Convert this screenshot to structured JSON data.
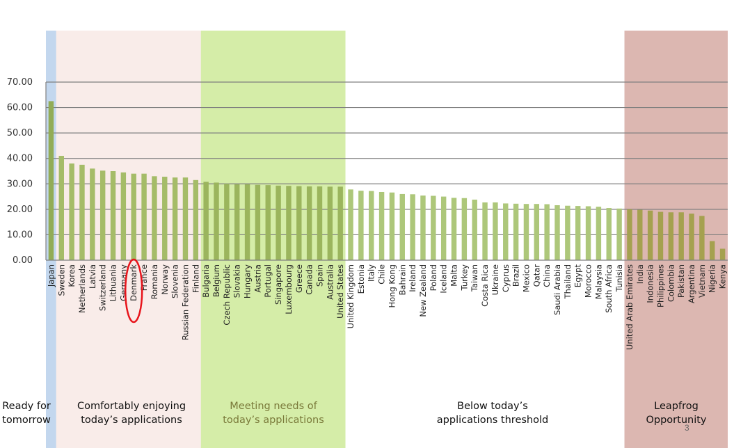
{
  "chart_data": {
    "type": "bar",
    "categories": [
      "Japan",
      "Sweden",
      "Korea",
      "Netherlands",
      "Latvia",
      "Switzerland",
      "Lithuania",
      "Germany",
      "Denmark",
      "France",
      "Romania",
      "Norway",
      "Slovenia",
      "Russian Federation",
      "Finland",
      "Bulgaria",
      "Belgium",
      "Czech Republic",
      "Slovakia",
      "Hungary",
      "Austria",
      "Portugal",
      "Singapore",
      "Luxembourg",
      "Greece",
      "Canada",
      "Spain",
      "Australia",
      "United States",
      "United Kingdom",
      "Estonia",
      "Italy",
      "Chile",
      "Hong Kong",
      "Bahrain",
      "Ireland",
      "New Zealand",
      "Poland",
      "Iceland",
      "Malta",
      "Turkey",
      "Taiwan",
      "Costa Rica",
      "Ukraine",
      "Cyprus",
      "Brazil",
      "Mexico",
      "Qatar",
      "China",
      "Saudi Arabia",
      "Thailand",
      "Egypt",
      "Morocco",
      "Malaysia",
      "South Africa",
      "Tunisia",
      "United Arab Emirates",
      "India",
      "Indonesia",
      "Philippines",
      "Colombia",
      "Pakistan",
      "Argentina",
      "Vietnam",
      "Nigeria",
      "Kenya"
    ],
    "values": [
      62.5,
      41.0,
      38.0,
      37.5,
      36.0,
      35.2,
      35.0,
      34.5,
      34.0,
      34.0,
      33.0,
      32.8,
      32.5,
      32.5,
      31.5,
      30.8,
      30.5,
      30.0,
      29.8,
      29.8,
      29.6,
      29.5,
      29.3,
      29.2,
      29.1,
      29.0,
      29.0,
      28.9,
      28.9,
      27.8,
      27.3,
      27.2,
      26.8,
      26.6,
      26.0,
      25.9,
      25.4,
      25.3,
      25.0,
      24.5,
      24.4,
      23.8,
      22.7,
      22.7,
      22.3,
      22.2,
      22.1,
      22.1,
      22.0,
      21.6,
      21.4,
      21.3,
      21.2,
      21.0,
      20.5,
      20.3,
      20.0,
      19.8,
      19.5,
      19.0,
      18.8,
      18.8,
      18.3,
      17.4,
      7.5,
      4.5
    ],
    "ylim": [
      0,
      70
    ],
    "yticks": [
      "0.00",
      "10.00",
      "20.00",
      "30.00",
      "40.00",
      "50.00",
      "60.00",
      "70.00"
    ],
    "grid": true,
    "highlight": "Denmark",
    "bands": [
      {
        "lines": [
          "Ready for",
          "tomorrow"
        ],
        "color": "#c3d7ee",
        "from": "Japan",
        "to": "Japan",
        "bar_color": "#92ac56"
      },
      {
        "lines": [
          "Comfortably enjoying",
          "today’s applications"
        ],
        "color": "#f9ece9",
        "from": "Sweden",
        "to": "Finland",
        "bar_color": "#a5bc68"
      },
      {
        "lines": [
          "Meeting needs of",
          "today’s applications"
        ],
        "color": "#d5eda8",
        "from": "Bulgaria",
        "to": "United States",
        "bar_color": "#9bb55d"
      },
      {
        "lines": [
          "Below today’s",
          "applications threshold"
        ],
        "color": "#ffffff",
        "from": "United Kingdom",
        "to": "Tunisia",
        "bar_color": "#adc77a"
      },
      {
        "lines": [
          "Leapfrog",
          "Opportunity"
        ],
        "color": "#dcb7b1",
        "from": "United Arab Emirates",
        "to": "Kenya",
        "bar_color": "#a5a14f"
      }
    ],
    "colors": {
      "axis": "#7f7f7f",
      "grid": "#7f7f7f",
      "highlight": "#e8141b"
    }
  },
  "page_number": "3"
}
